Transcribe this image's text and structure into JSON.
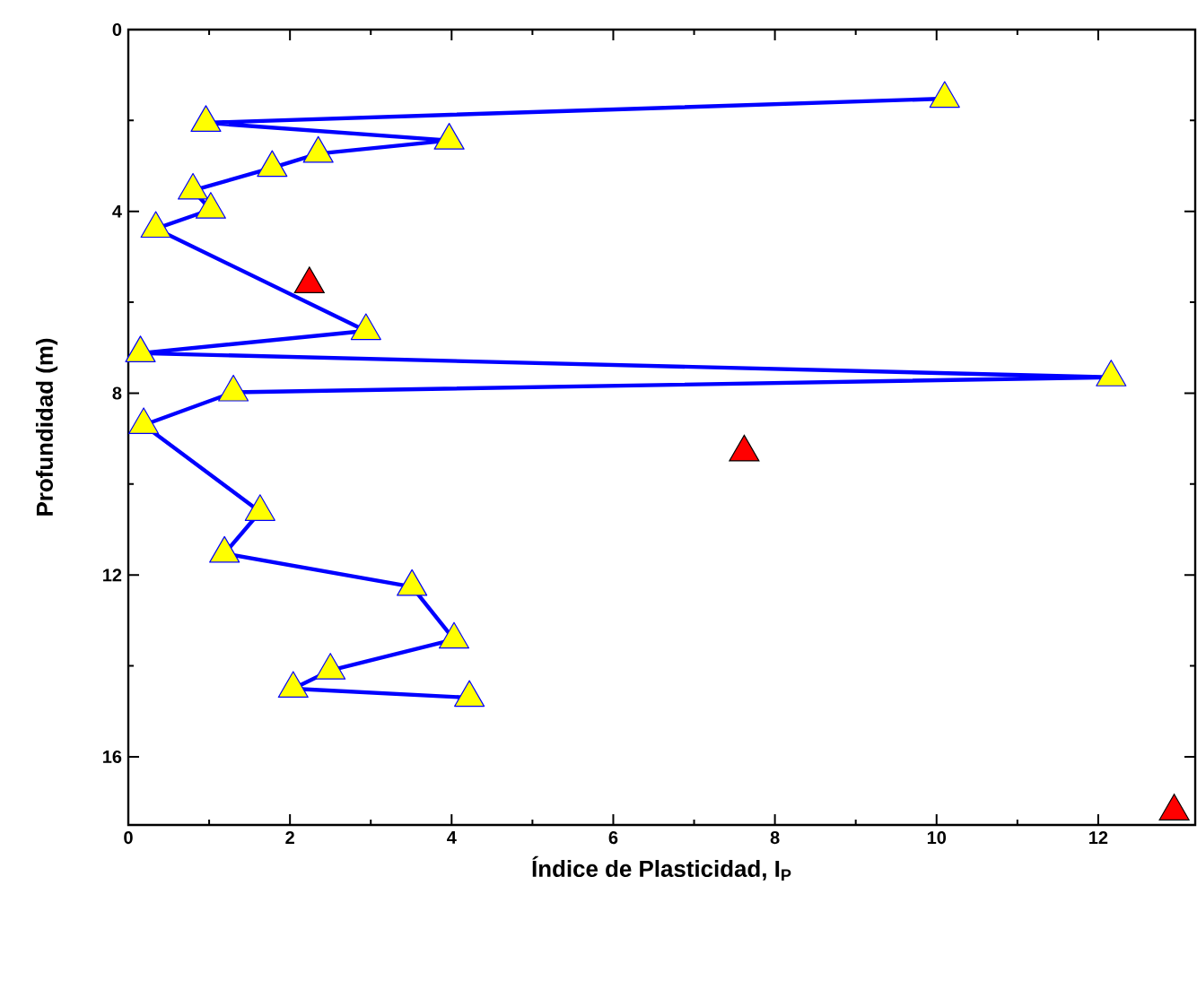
{
  "chart_data": {
    "type": "line",
    "xlabel": "Índice de Plasticidad, I$_{P}$",
    "ylabel": "Profundidad (m)",
    "xlim": [
      0,
      13.2
    ],
    "ylim": [
      17.5,
      0
    ],
    "xticks": [
      0,
      2,
      4,
      6,
      8,
      10,
      12
    ],
    "yticks": [
      0,
      4,
      8,
      12,
      16
    ],
    "marker": "triangle",
    "line_style": "solid",
    "series": [
      {
        "color": "#0000ff",
        "x": [
          10.1,
          0.96,
          3.97,
          2.35,
          1.78,
          0.8,
          1.02,
          0.34,
          2.94,
          0.15,
          12.16,
          1.3,
          0.19,
          1.63,
          1.19,
          3.51,
          4.03,
          2.5,
          2.04,
          4.22
        ],
        "values": [
          1.52,
          2.05,
          2.44,
          2.73,
          3.04,
          3.54,
          3.96,
          4.38,
          6.63,
          7.12,
          7.65,
          7.98,
          8.7,
          10.61,
          11.53,
          12.26,
          13.42,
          14.1,
          14.5,
          14.7
        ]
      },
      {
        "type": "scatter",
        "color": "#ff0000",
        "x": [
          2.24,
          7.62,
          12.94
        ],
        "values": [
          5.6,
          9.3,
          17.2
        ]
      }
    ]
  }
}
